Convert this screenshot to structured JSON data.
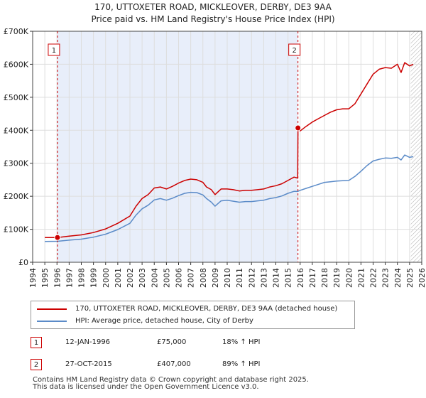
{
  "title_line1": "170, UTTOXETER ROAD, MICKLEOVER, DERBY, DE3 9AA",
  "title_line2": "Price paid vs. HM Land Registry's House Price Index (HPI)",
  "colors": {
    "property": "#cc0000",
    "hpi": "#5b8bc8",
    "shade": "#e8eefa",
    "grid": "#dddddd",
    "marker": "#cc0000"
  },
  "chart_data": {
    "type": "line",
    "xlim": [
      1994,
      2026
    ],
    "ylim": [
      0,
      700000
    ],
    "x_ticks": [
      1994,
      1995,
      1996,
      1997,
      1998,
      1999,
      2000,
      2001,
      2002,
      2003,
      2004,
      2005,
      2006,
      2007,
      2008,
      2009,
      2010,
      2011,
      2012,
      2013,
      2014,
      2015,
      2016,
      2017,
      2018,
      2019,
      2020,
      2021,
      2022,
      2023,
      2024,
      2025,
      2026
    ],
    "y_ticks": [
      0,
      100000,
      200000,
      300000,
      400000,
      500000,
      600000,
      700000
    ],
    "y_tick_labels": [
      "£0",
      "£100K",
      "£200K",
      "£300K",
      "£400K",
      "£500K",
      "£600K",
      "£700K"
    ],
    "shaded_region": [
      1996.04,
      2015.82
    ],
    "future_hatch_from": 2025.1,
    "series": [
      {
        "name": "170, UTTOXETER ROAD, MICKLEOVER, DERBY, DE3 9AA (detached house)",
        "x": [
          1995.0,
          1996.04,
          1997,
          1998,
          1999,
          2000,
          2001,
          2002,
          2002.5,
          2003,
          2003.5,
          2004,
          2004.5,
          2005,
          2005.5,
          2006,
          2006.5,
          2007,
          2007.5,
          2008,
          2008.3,
          2008.7,
          2009,
          2009.5,
          2010,
          2010.5,
          2011,
          2011.5,
          2012,
          2012.5,
          2013,
          2013.5,
          2014,
          2014.5,
          2015,
          2015.5,
          2015.8,
          2015.82,
          2016,
          2016.5,
          2017,
          2017.5,
          2018,
          2018.5,
          2019,
          2019.5,
          2020,
          2020.5,
          2021,
          2021.5,
          2022,
          2022.5,
          2023,
          2023.5,
          2024,
          2024.3,
          2024.6,
          2025.0,
          2025.3
        ],
        "y": [
          75000,
          75000,
          79000,
          83000,
          90000,
          101000,
          118000,
          140000,
          170000,
          193000,
          205000,
          225000,
          228000,
          222000,
          230000,
          240000,
          248000,
          252000,
          250000,
          242000,
          228000,
          220000,
          205000,
          222000,
          222000,
          220000,
          216000,
          218000,
          218000,
          220000,
          222000,
          228000,
          232000,
          238000,
          248000,
          258000,
          255000,
          407000,
          398000,
          412000,
          425000,
          435000,
          445000,
          455000,
          462000,
          465000,
          465000,
          480000,
          510000,
          540000,
          570000,
          585000,
          590000,
          588000,
          600000,
          575000,
          605000,
          595000,
          600000
        ]
      },
      {
        "name": "HPI: Average price, detached house, City of Derby",
        "x": [
          1995.0,
          1996.04,
          1997,
          1998,
          1999,
          2000,
          2001,
          2002,
          2002.5,
          2003,
          2003.5,
          2004,
          2004.5,
          2005,
          2005.5,
          2006,
          2006.5,
          2007,
          2007.5,
          2008,
          2008.3,
          2008.7,
          2009,
          2009.5,
          2010,
          2010.5,
          2011,
          2011.5,
          2012,
          2012.5,
          2013,
          2013.5,
          2014,
          2014.5,
          2015,
          2015.5,
          2015.82,
          2016,
          2016.5,
          2017,
          2017.5,
          2018,
          2018.5,
          2019,
          2019.5,
          2020,
          2020.5,
          2021,
          2021.5,
          2022,
          2022.5,
          2023,
          2023.5,
          2024,
          2024.3,
          2024.6,
          2025.0,
          2025.3
        ],
        "y": [
          63000,
          63500,
          67000,
          70000,
          76000,
          85000,
          99000,
          118000,
          143000,
          162000,
          173000,
          189000,
          193000,
          188000,
          194000,
          202000,
          209000,
          212000,
          211000,
          204000,
          193000,
          182000,
          170000,
          186000,
          188000,
          185000,
          182000,
          184000,
          184000,
          186000,
          188000,
          193000,
          196000,
          201000,
          209000,
          215000,
          215000,
          218000,
          224000,
          230000,
          236000,
          242000,
          244000,
          246000,
          247000,
          248000,
          260000,
          276000,
          293000,
          307000,
          312000,
          316000,
          315000,
          318000,
          310000,
          325000,
          318000,
          320000
        ]
      }
    ],
    "sales": [
      {
        "label": "1",
        "x": 1996.04,
        "y": 75000
      },
      {
        "label": "2",
        "x": 2015.82,
        "y": 407000
      }
    ]
  },
  "legend": {
    "property_label": "170, UTTOXETER ROAD, MICKLEOVER, DERBY, DE3 9AA (detached house)",
    "hpi_label": "HPI: Average price, detached house, City of Derby"
  },
  "table": [
    {
      "num": "1",
      "date": "12-JAN-1996",
      "price": "£75,000",
      "hpi": "18% ↑ HPI"
    },
    {
      "num": "2",
      "date": "27-OCT-2015",
      "price": "£407,000",
      "hpi": "89% ↑ HPI"
    }
  ],
  "footer_line1": "Contains HM Land Registry data © Crown copyright and database right 2025.",
  "footer_line2": "This data is licensed under the Open Government Licence v3.0."
}
